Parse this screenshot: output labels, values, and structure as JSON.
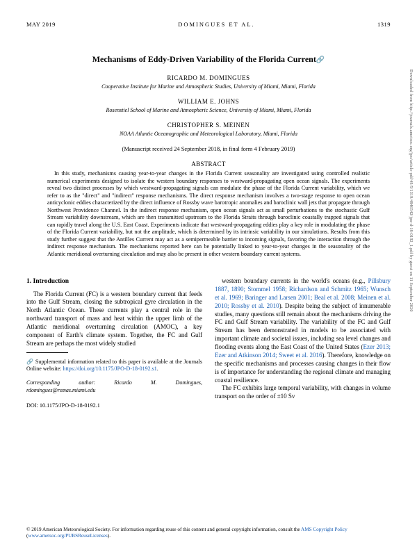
{
  "header": {
    "left": "MAY 2019",
    "center": "DOMINGUES ET AL.",
    "page": "1319"
  },
  "title": "Mechanisms of Eddy-Driven Variability of the Florida Current",
  "authors": [
    {
      "name": "RICARDO M. DOMINGUES",
      "affil": "Cooperative Institute for Marine and Atmospheric Studies, University of Miami, Miami, Florida"
    },
    {
      "name": "WILLIAM E. JOHNS",
      "affil": "Rosenstiel School of Marine and Atmospheric Science, University of Miami, Miami, Florida"
    },
    {
      "name": "CHRISTOPHER S. MEINEN",
      "affil": "NOAA Atlantic Oceanographic and Meteorological Laboratory, Miami, Florida"
    }
  ],
  "dates": "(Manuscript received 24 September 2018, in final form 4 February 2019)",
  "abstract_head": "ABSTRACT",
  "abstract": "In this study, mechanisms causing year-to-year changes in the Florida Current seasonality are investigated using controlled realistic numerical experiments designed to isolate the western boundary responses to westward-propagating open ocean signals. The experiments reveal two distinct processes by which westward-propagating signals can modulate the phase of the Florida Current variability, which we refer to as the \"direct\" and \"indirect\" response mechanisms. The direct response mechanism involves a two-stage response to open ocean anticyclonic eddies characterized by the direct influence of Rossby wave barotropic anomalies and baroclinic wall jets that propagate through Northwest Providence Channel. In the indirect response mechanism, open ocean signals act as small perturbations to the stochastic Gulf Stream variability downstream, which are then transmitted upstream to the Florida Straits through baroclinic coastally trapped signals that can rapidly travel along the U.S. East Coast. Experiments indicate that westward-propagating eddies play a key role in modulating the phase of the Florida Current variability, but not the amplitude, which is determined by its intrinsic variability in our simulations. Results from this study further suggest that the Antilles Current may act as a semipermeable barrier to incoming signals, favoring the interaction through the indirect response mechanism. The mechanisms reported here can be potentially linked to year-to-year changes in the seasonality of the Atlantic meridional overturning circulation and may also be present in other western boundary current systems.",
  "section_head": "1. Introduction",
  "left_col": "The Florida Current (FC) is a western boundary current that feeds into the Gulf Stream, closing the subtropical gyre circulation in the North Atlantic Ocean. These currents play a central role in the northward transport of mass and heat within the upper limb of the Atlantic meridional overturning circulation (AMOC), a key component of Earth's climate system. Together, the FC and Gulf Stream are perhaps the most widely studied",
  "right_col_a": "western boundary currents in the world's oceans (e.g., ",
  "right_cite1": "Pillsbury 1887, 1890; Stommel 1958; Richardson and Schmitz 1965; Wunsch et al. 1969; Baringer and Larsen 2001; Beal et al. 2008; Meinen et al. 2010; Rossby et al. 2010",
  "right_col_b": "). Despite being the subject of innumerable studies, many questions still remain about the mechanisms driving the FC and Gulf Stream variability. The variability of the FC and Gulf Stream has been demonstrated in models to be associated with important climate and societal issues, including sea level changes and flooding events along the East Coast of the United States (",
  "right_cite2": "Ezer 2013; Ezer and Atkinson 2014; Sweet et al. 2016",
  "right_col_c": "). Therefore, knowledge on the specific mechanisms and processes causing changes in their flow is of importance for understanding the regional climate and managing coastal resilience.",
  "right_col_d": "The FC exhibits large temporal variability, with changes in volume transport on the order of ±10 Sv",
  "supp_a": "Supplemental information related to this paper is available at the Journals Online website: ",
  "supp_link": "https://doi.org/10.1175/JPO-D-18-0192.s1",
  "supp_b": ".",
  "corr_a": "Corresponding author",
  "corr_b": ": Ricardo M. Domingues, rdomingues@rsmas.miami.edu",
  "doi": "DOI: 10.1175/JPO-D-18-0192.1",
  "footer_a": "© 2019 American Meteorological Society. For information regarding reuse of this content and general copyright information, consult the ",
  "footer_link1": "AMS Copyright Policy",
  "footer_b": " (",
  "footer_link2": "www.ametsoc.org/PUBSReuseLicenses",
  "footer_c": ").",
  "vertical": "Downloaded from http://journals.ametsoc.org/jpo/article-pdf/49/5/1319/4846542/jpo-d-18-0192_1.pdf by guest on 11 September 2020"
}
